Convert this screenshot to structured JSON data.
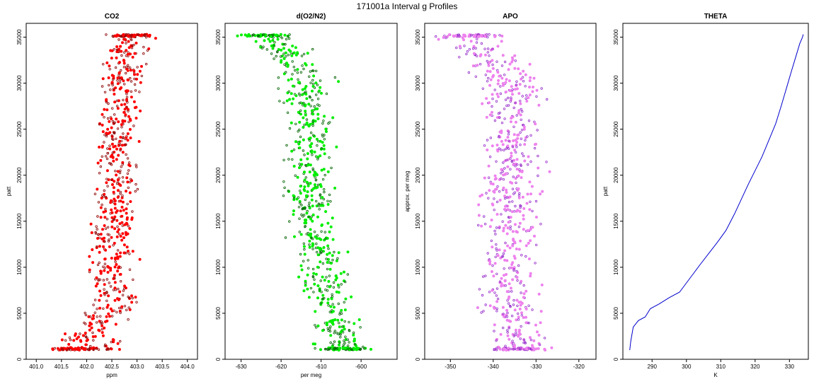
{
  "figure_title": "171001a   Interval g Profiles",
  "chart_data": [
    {
      "type": "scatter",
      "title": "CO2",
      "xlabel": "ppm",
      "ylabel": "patt",
      "xlim": [
        400.8,
        404.2
      ],
      "ylim": [
        0,
        36500
      ],
      "xticks": [
        "401.0",
        "401.5",
        "402.0",
        "402.5",
        "403.0",
        "403.5",
        "404.0"
      ],
      "yticks": [
        "0",
        "5000",
        "10000",
        "15000",
        "20000",
        "25000",
        "30000",
        "35000"
      ],
      "colors": {
        "primary": "#ff0000",
        "secondary": "#8b0000"
      },
      "y_range": [
        1000,
        35300
      ],
      "x_center_profile": [
        [
          1000,
          401.9
        ],
        [
          3000,
          402.05
        ],
        [
          6000,
          402.6
        ],
        [
          10000,
          402.5
        ],
        [
          15000,
          402.55
        ],
        [
          20000,
          402.6
        ],
        [
          25000,
          402.6
        ],
        [
          30000,
          402.7
        ],
        [
          35300,
          402.85
        ]
      ],
      "x_spread_profile": [
        [
          1000,
          0.55
        ],
        [
          4000,
          0.45
        ],
        [
          8000,
          0.4
        ],
        [
          15000,
          0.35
        ],
        [
          25000,
          0.35
        ],
        [
          35300,
          0.4
        ]
      ]
    },
    {
      "type": "scatter",
      "title": "d(O2/N2)",
      "xlabel": "per meg",
      "ylabel": "",
      "xlim": [
        -634,
        -591
      ],
      "ylim": [
        0,
        36500
      ],
      "xticks": [
        "-630",
        "-620",
        "-610",
        "-600"
      ],
      "yticks": [
        "0",
        "5000",
        "10000",
        "15000",
        "20000",
        "25000",
        "30000",
        "35000"
      ],
      "colors": {
        "primary": "#00ee00",
        "secondary": "#006400"
      },
      "y_range": [
        1000,
        35300
      ],
      "x_center_profile": [
        [
          1000,
          -604
        ],
        [
          5000,
          -607
        ],
        [
          10000,
          -610
        ],
        [
          15000,
          -612
        ],
        [
          20000,
          -613
        ],
        [
          25000,
          -612
        ],
        [
          30000,
          -614
        ],
        [
          33000,
          -618
        ],
        [
          35300,
          -624
        ]
      ],
      "x_spread_profile": [
        [
          1000,
          5
        ],
        [
          10000,
          5
        ],
        [
          25000,
          5
        ],
        [
          35300,
          6
        ]
      ]
    },
    {
      "type": "scatter",
      "title": "APO",
      "xlabel": "",
      "ylabel": "approx. per meg",
      "xlim": [
        -356,
        -316
      ],
      "ylim": [
        0,
        36500
      ],
      "xticks": [
        "-350",
        "-340",
        "-330",
        "-320"
      ],
      "yticks": [
        "0",
        "5000",
        "10000",
        "15000",
        "20000",
        "25000",
        "30000",
        "35000"
      ],
      "colors": {
        "primary": "#ee82ee",
        "secondary": "#9932cc"
      },
      "y_range": [
        1000,
        35300
      ],
      "x_center_profile": [
        [
          1000,
          -333
        ],
        [
          5000,
          -336
        ],
        [
          10000,
          -336
        ],
        [
          15000,
          -336
        ],
        [
          20000,
          -336
        ],
        [
          25000,
          -335
        ],
        [
          30000,
          -337
        ],
        [
          33000,
          -341
        ],
        [
          35300,
          -345
        ]
      ],
      "x_spread_profile": [
        [
          1000,
          6
        ],
        [
          10000,
          6
        ],
        [
          25000,
          6
        ],
        [
          35300,
          7
        ]
      ]
    },
    {
      "type": "line",
      "title": "THETA",
      "xlabel": "K",
      "ylabel": "patt",
      "xlim": [
        281.5,
        335.5
      ],
      "ylim": [
        0,
        36500
      ],
      "xticks": [
        "290",
        "300",
        "310",
        "320",
        "330"
      ],
      "yticks": [
        "0",
        "5000",
        "10000",
        "15000",
        "20000",
        "25000",
        "30000",
        "35000"
      ],
      "colors": {
        "primary": "#0000cd"
      },
      "points": [
        [
          283.5,
          1000
        ],
        [
          283.8,
          2000
        ],
        [
          284.5,
          3500
        ],
        [
          286,
          4200
        ],
        [
          288,
          4600
        ],
        [
          289.5,
          5500
        ],
        [
          292,
          6000
        ],
        [
          295,
          6700
        ],
        [
          298,
          7300
        ],
        [
          300,
          8300
        ],
        [
          302,
          9300
        ],
        [
          304,
          10300
        ],
        [
          306.5,
          11500
        ],
        [
          309,
          12700
        ],
        [
          311.5,
          14000
        ],
        [
          314,
          15800
        ],
        [
          316,
          17400
        ],
        [
          318,
          19000
        ],
        [
          320,
          20500
        ],
        [
          322,
          22000
        ],
        [
          324,
          23800
        ],
        [
          326,
          25600
        ],
        [
          327.5,
          27400
        ],
        [
          329,
          29300
        ],
        [
          330.5,
          31200
        ],
        [
          331.8,
          32800
        ],
        [
          333,
          34300
        ],
        [
          333.8,
          35000
        ],
        [
          334,
          35300
        ]
      ]
    }
  ]
}
